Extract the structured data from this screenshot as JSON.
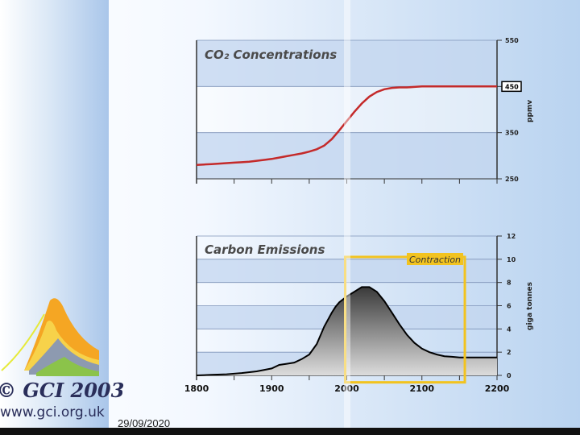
{
  "logo": {
    "copyright": "© GCI 2003",
    "url": "www.gci.org.uk"
  },
  "footer": {
    "date": "29/09/2020"
  },
  "colors": {
    "co2_line": "#c42a2a",
    "emissions_fill_dark": "#3a3a3a",
    "emissions_fill_light": "#dcdcdc",
    "highlight_box": "#f2c31f",
    "band": "#c3d5ef"
  },
  "chart_data": [
    {
      "type": "line",
      "title": "CO₂ Concentrations",
      "ylabel": "ppmv",
      "xlim": [
        1800,
        2200
      ],
      "ylim": [
        250,
        550
      ],
      "yticks": [
        "550",
        "450",
        "350",
        "250"
      ],
      "marker_label": "450",
      "grid": true,
      "series": [
        {
          "x": [
            1800,
            1810,
            1820,
            1830,
            1840,
            1850,
            1860,
            1870,
            1880,
            1890,
            1900,
            1910,
            1920,
            1930,
            1940,
            1950,
            1960,
            1970,
            1980,
            1990,
            2000,
            2010,
            2020,
            2030,
            2040,
            2050,
            2060,
            2070,
            2080,
            2090,
            2100,
            2120,
            2150,
            2200
          ],
          "values": [
            280,
            281,
            282,
            283,
            284,
            285,
            286,
            287,
            289,
            291,
            293,
            296,
            299,
            302,
            305,
            309,
            314,
            322,
            336,
            355,
            375,
            395,
            413,
            428,
            438,
            444,
            447,
            448,
            448,
            449,
            450,
            450,
            450,
            450
          ]
        }
      ]
    },
    {
      "type": "area",
      "title": "Carbon Emissions",
      "ylabel": "giga tonnes",
      "xlim": [
        1800,
        2200
      ],
      "ylim": [
        0,
        12
      ],
      "xticks": [
        "1800",
        "1900",
        "2000",
        "2100",
        "2200"
      ],
      "yticks": [
        "12",
        "10",
        "8",
        "6",
        "4",
        "2",
        "0"
      ],
      "annotation": "Contraction",
      "annotation_range": [
        2000,
        2155
      ],
      "grid": true,
      "series": [
        {
          "x": [
            1800,
            1820,
            1840,
            1860,
            1880,
            1900,
            1910,
            1920,
            1930,
            1940,
            1950,
            1960,
            1970,
            1980,
            1985,
            1990,
            2000,
            2010,
            2020,
            2030,
            2040,
            2050,
            2060,
            2070,
            2080,
            2090,
            2100,
            2110,
            2120,
            2130,
            2140,
            2150,
            2160,
            2180,
            2200
          ],
          "values": [
            0,
            0.05,
            0.1,
            0.2,
            0.35,
            0.6,
            0.9,
            1.0,
            1.1,
            1.4,
            1.8,
            2.7,
            4.2,
            5.4,
            5.9,
            6.3,
            6.8,
            7.2,
            7.6,
            7.6,
            7.2,
            6.4,
            5.4,
            4.4,
            3.5,
            2.8,
            2.3,
            2.0,
            1.8,
            1.65,
            1.6,
            1.55,
            1.55,
            1.55,
            1.55
          ]
        }
      ]
    }
  ]
}
